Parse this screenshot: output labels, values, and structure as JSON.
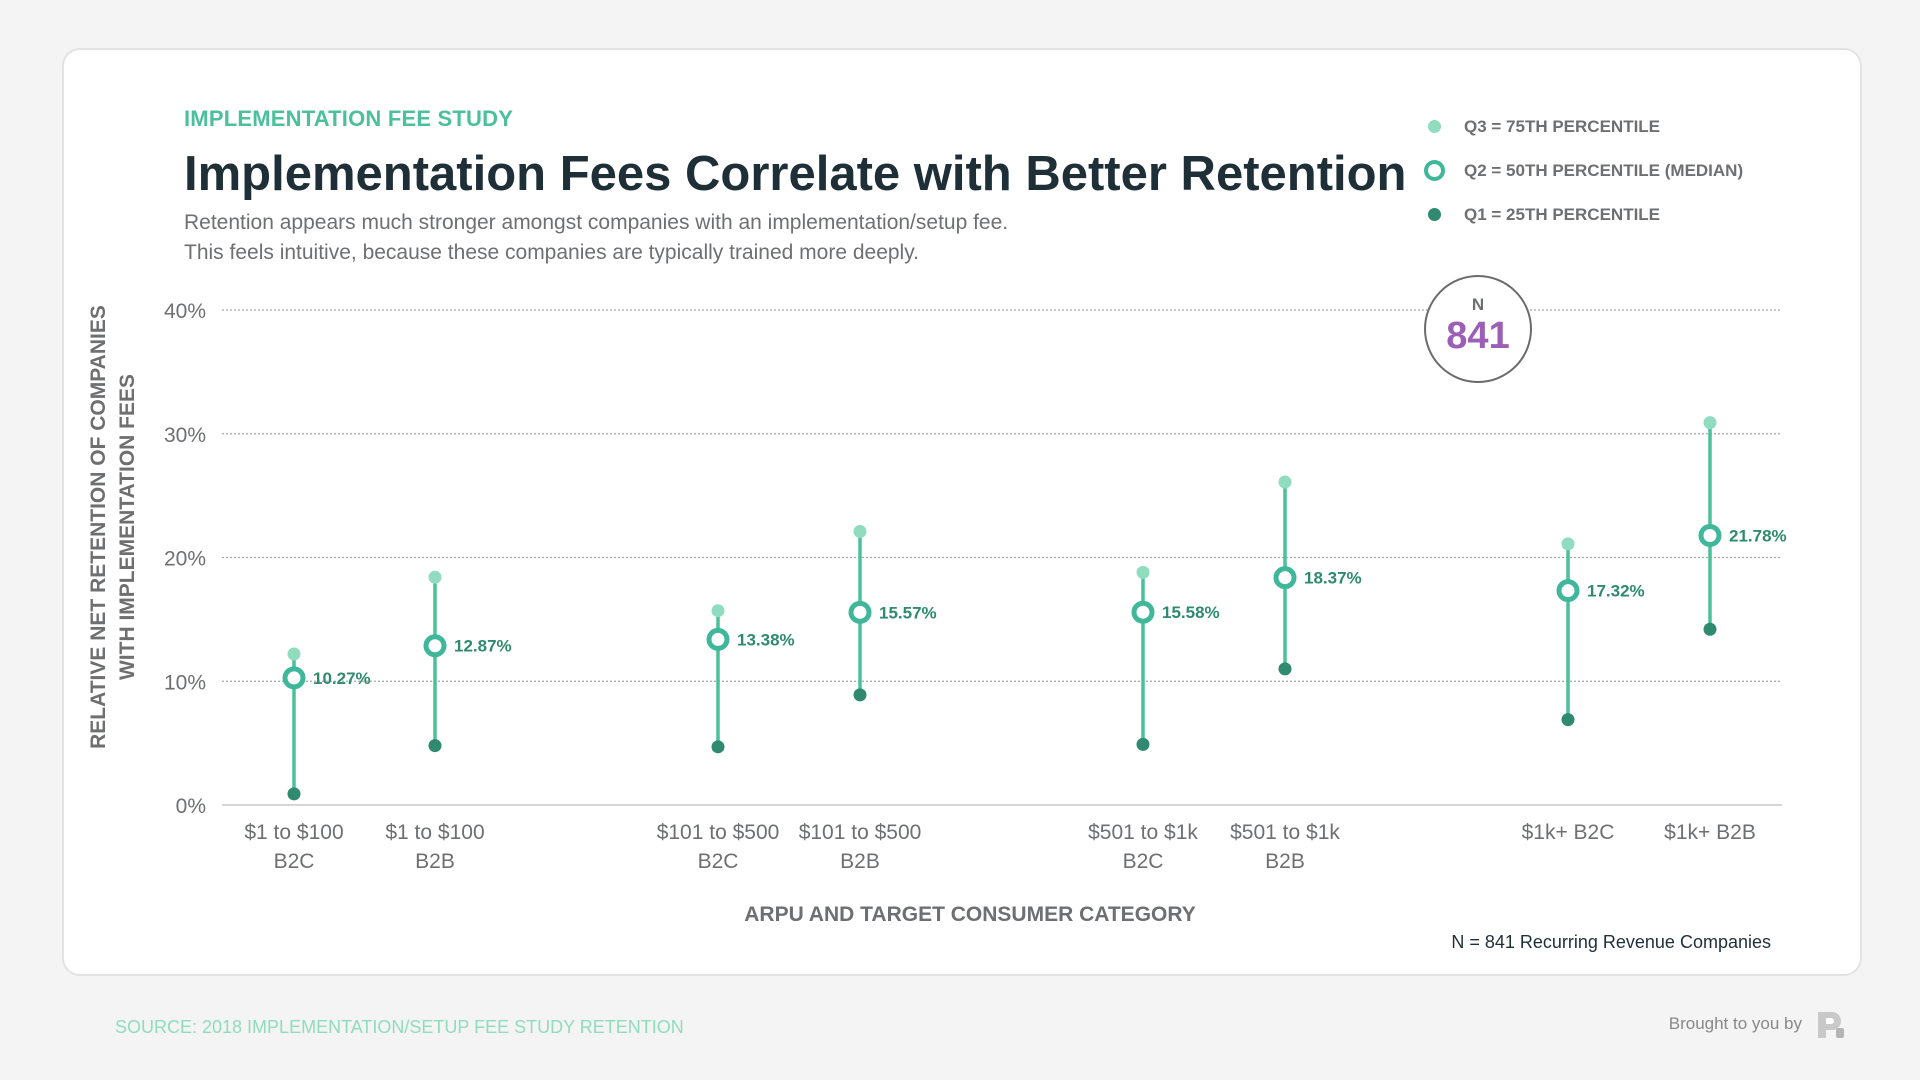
{
  "eyebrow": "IMPLEMENTATION FEE STUDY",
  "title": "Implementation Fees Correlate with Better Retention",
  "subtitle_lines": [
    "Retention appears much stronger amongst companies with an implementation/setup fee.",
    "This feels intuitive, because these companies are typically trained more deeply."
  ],
  "legend": [
    {
      "label": "Q3 = 75TH PERCENTILE",
      "icon": "filled-circle",
      "color": "#8fdcbf"
    },
    {
      "label": "Q2 = 50TH PERCENTILE (MEDIAN)",
      "icon": "ring",
      "color": "#3fb79a"
    },
    {
      "label": "Q1 = 25TH PERCENTILE",
      "icon": "filled-circle",
      "color": "#2f8a70"
    }
  ],
  "n_badge": {
    "label": "N",
    "value": "841"
  },
  "ncaption": "N = 841 Recurring Revenue Companies",
  "footer": {
    "source": "SOURCE: 2018 IMPLEMENTATION/SETUP FEE STUDY RETENTION",
    "brought_by": "Brought to you by",
    "logo_icon": "profitwell-logo-icon"
  },
  "colors": {
    "accent": "#4cbf9b",
    "stem": "#4cbf9b",
    "q3": "#8fdcbf",
    "q2": "#3fb79a",
    "q1": "#2f8a70",
    "median_label": "#2f8a70",
    "n_value": "#9b5fb5",
    "title": "#1e2f37"
  },
  "chart_data": {
    "type": "range-dot",
    "xlabel": "ARPU AND TARGET CONSUMER CATEGORY",
    "ylabel_lines": [
      "RELATIVE NET RETENTION OF COMPANIES",
      "WITH IMPLEMENTATION FEES"
    ],
    "ylim": [
      0,
      40
    ],
    "yticks": [
      0,
      10,
      20,
      30,
      40
    ],
    "ytick_labels": [
      "0%",
      "10%",
      "20%",
      "30%",
      "40%"
    ],
    "grid": true,
    "legend_position": "top-right",
    "categories": [
      [
        "$1 to $100",
        "B2C"
      ],
      [
        "$1 to $100",
        "B2B"
      ],
      [
        "$101 to $500",
        "B2C"
      ],
      [
        "$101 to $500",
        "B2B"
      ],
      [
        "$501 to $1k",
        "B2C"
      ],
      [
        "$501 to $1k",
        "B2B"
      ],
      [
        "$1k+ B2C"
      ],
      [
        "$1k+ B2B"
      ]
    ],
    "category_groups": [
      [
        0,
        1
      ],
      [
        2,
        3
      ],
      [
        4,
        5
      ],
      [
        6,
        7
      ]
    ],
    "series": [
      {
        "name": "Q3 = 75TH PERCENTILE",
        "values": [
          12.2,
          18.4,
          15.7,
          22.1,
          18.8,
          26.1,
          21.1,
          30.9
        ]
      },
      {
        "name": "Q2 = 50TH PERCENTILE (MEDIAN)",
        "values": [
          10.27,
          12.87,
          13.38,
          15.57,
          15.58,
          18.37,
          17.32,
          21.78
        ],
        "labels": [
          "10.27%",
          "12.87%",
          "13.38%",
          "15.57%",
          "15.58%",
          "18.37%",
          "17.32%",
          "21.78%"
        ]
      },
      {
        "name": "Q1 = 25TH PERCENTILE",
        "values": [
          0.9,
          4.8,
          4.7,
          8.9,
          4.9,
          11.0,
          6.9,
          14.2
        ]
      }
    ]
  }
}
